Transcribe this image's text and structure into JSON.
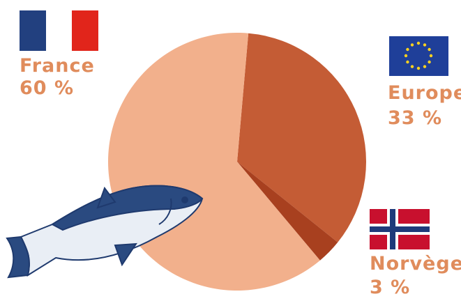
{
  "chart_data": {
    "type": "pie",
    "categories": [
      "France",
      "Europe",
      "Norvège"
    ],
    "values": [
      60,
      33,
      3
    ],
    "value_labels": [
      "60 %",
      "33 %",
      "3 %"
    ],
    "colors": [
      "#f2b08c",
      "#c45c35",
      "#a8401f"
    ]
  }
}
